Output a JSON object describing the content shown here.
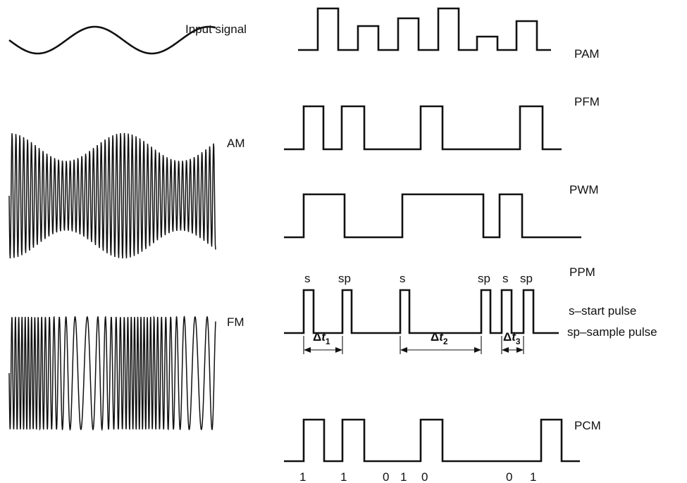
{
  "labels": {
    "input": "Input signal",
    "am": "AM",
    "fm": "FM",
    "pam": "PAM",
    "pfm": "PFM",
    "pwm": "PWM",
    "ppm": "PPM",
    "pcm": "PCM",
    "legend_start": "s–start pulse",
    "legend_sample": "sp–sample pulse"
  },
  "ppm_marks": [
    "s",
    "sp",
    "s",
    "sp",
    "s",
    "sp"
  ],
  "delta_labels": [
    {
      "sym": "Δ",
      "var": "t",
      "sub": "1"
    },
    {
      "sym": "Δ",
      "var": "t",
      "sub": "2"
    },
    {
      "sym": "Δ",
      "var": "t",
      "sub": "3"
    }
  ],
  "pcm_bits": [
    "1",
    "1",
    "0",
    "1",
    "0",
    "0",
    "1"
  ],
  "colors": {
    "ink": "#111111",
    "background": "#ffffff"
  }
}
